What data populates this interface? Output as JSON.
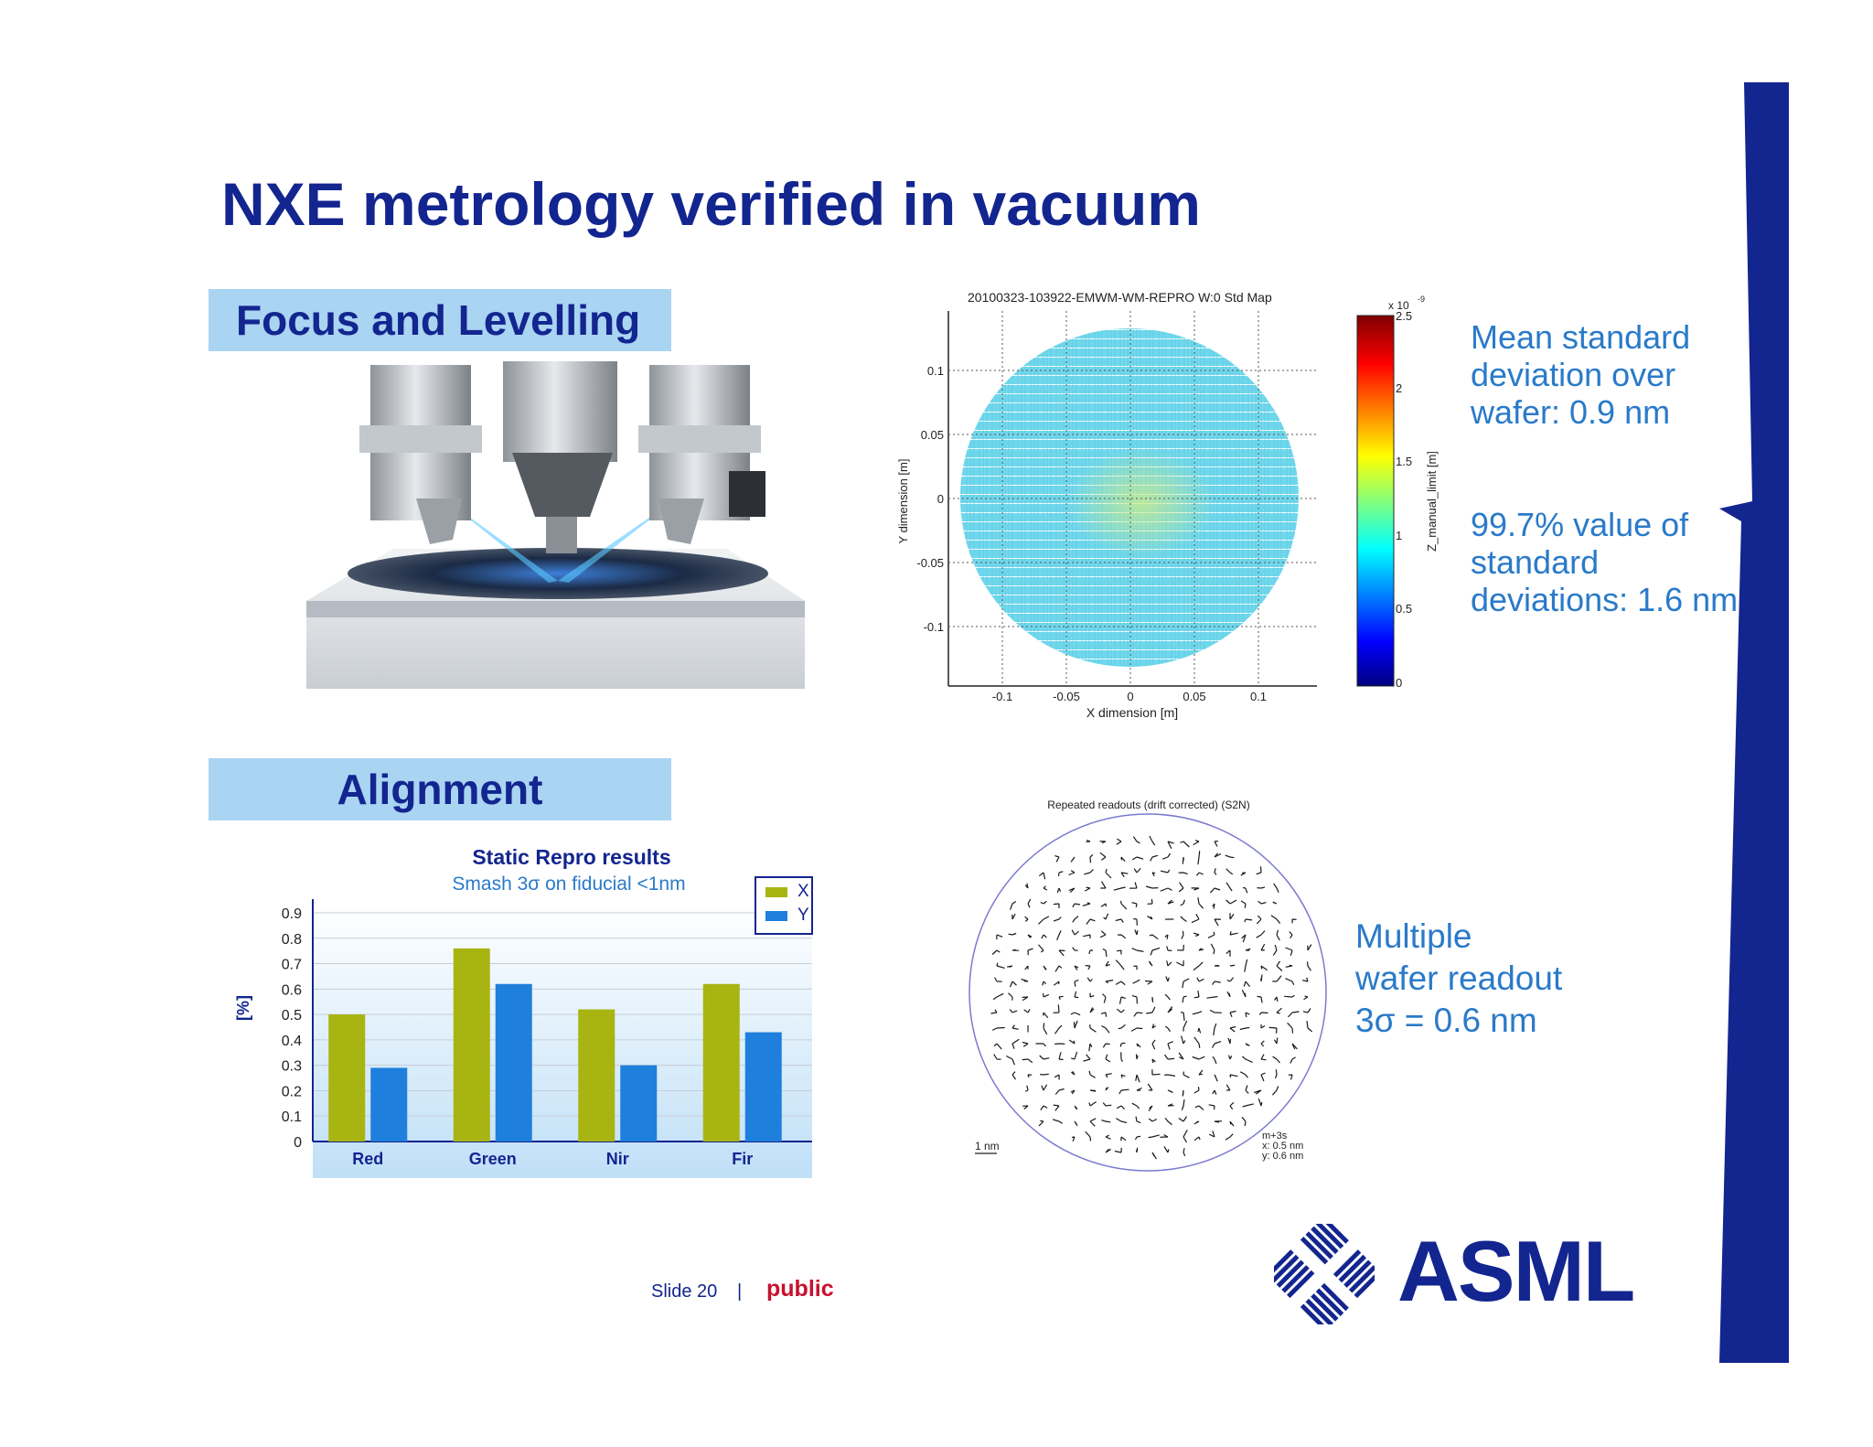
{
  "slide": {
    "title": "NXE metrology verified in vacuum",
    "sections": {
      "focus": "Focus and Levelling",
      "alignment": "Alignment"
    },
    "footer": {
      "slide_label": "Slide 20",
      "separator": "|",
      "classification": "public"
    },
    "logo": {
      "text": "ASML"
    },
    "colors": {
      "brand": "#13258f",
      "accent_text": "#2a7ac9",
      "section_bg": "#a9d4f2",
      "public": "#c8102e"
    }
  },
  "focus_panel": {
    "paragraph1": "Mean standard deviation over wafer: 0.9 nm",
    "paragraph2": "99.7% value of standard deviations: 1.6 nm"
  },
  "wafer_map": {
    "title": "20100323-103922-EMWM-WM-REPRO W:0 Std Map",
    "xlabel": "X dimension [m]",
    "ylabel": "Y dimension [m]",
    "x_ticks": [
      "-0.1",
      "-0.05",
      "0",
      "0.05",
      "0.1"
    ],
    "y_ticks": [
      "0.1",
      "0.05",
      "0",
      "-0.05",
      "-0.1"
    ],
    "colorbar_label": "Z_manual_limit [m]",
    "colorbar_scale": "x 10",
    "colorbar_exp": "-9",
    "colorbar_ticks": [
      "2.5",
      "2",
      "1.5",
      "1",
      "0.5",
      "0"
    ]
  },
  "readout_map": {
    "title": "Repeated readouts (drift corrected) (S2N)",
    "scale_label": "1 nm",
    "stats_header": "m+3s",
    "stats_x": "x:   0.5 nm",
    "stats_y": "y:   0.6 nm"
  },
  "alignment_panel": {
    "text_lines": [
      "Multiple",
      "wafer readout",
      "3σ = 0.6 nm"
    ]
  },
  "chart_data": {
    "type": "bar",
    "title": "Static Repro results",
    "subtitle": "Smash 3σ on fiducial <1nm",
    "xlabel": "",
    "ylabel": "[%]",
    "categories": [
      "Red",
      "Green",
      "Nir",
      "Fir"
    ],
    "series": [
      {
        "name": "X",
        "values": [
          0.5,
          0.76,
          0.52,
          0.62
        ],
        "color": "#a8b411"
      },
      {
        "name": "Y",
        "values": [
          0.29,
          0.62,
          0.3,
          0.43
        ],
        "color": "#1f7fdc"
      }
    ],
    "y_ticks": [
      "0",
      "0.1",
      "0.2",
      "0.3",
      "0.4",
      "0.5",
      "0.6",
      "0.7",
      "0.8",
      "0.9"
    ],
    "ylim": [
      0,
      0.9
    ],
    "grid": true,
    "legend": "top-right"
  }
}
